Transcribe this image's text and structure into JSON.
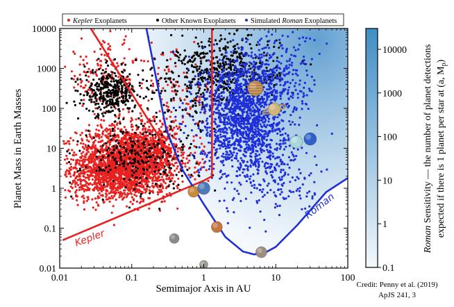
{
  "chart_data": {
    "type": "scatter",
    "xlabel": "Semimajor Axis in AU",
    "ylabel": "Planet Mass in Earth Masses",
    "xscale": "log",
    "yscale": "log",
    "xlim": [
      0.01,
      100
    ],
    "ylim": [
      0.01,
      10000
    ],
    "x_ticks": [
      {
        "value": 0.01,
        "label": "0.01"
      },
      {
        "value": 0.1,
        "label": "0.1"
      },
      {
        "value": 1,
        "label": "1"
      },
      {
        "value": 10,
        "label": "10"
      },
      {
        "value": 100,
        "label": "100"
      }
    ],
    "y_ticks": [
      {
        "value": 0.01,
        "label": "0.01"
      },
      {
        "value": 0.1,
        "label": "0.1"
      },
      {
        "value": 1,
        "label": "1"
      },
      {
        "value": 10,
        "label": "10"
      },
      {
        "value": 100,
        "label": "100"
      },
      {
        "value": 1000,
        "label": "1000"
      },
      {
        "value": 10000,
        "label": "10000"
      }
    ],
    "legend": {
      "placement": "top",
      "entries": [
        {
          "pre": "",
          "italic": "Kepler",
          "post": " Exoplanets",
          "color": "#e8201e"
        },
        {
          "pre": "Other Known Exoplanets",
          "italic": "",
          "post": "",
          "color": "#000000"
        },
        {
          "pre": "Simulated ",
          "italic": "Roman",
          "post": " Exoplanets",
          "color": "#1f2fd8"
        }
      ]
    },
    "series": [
      {
        "key": "kepler",
        "color": "#e8201e",
        "clusters": [
          {
            "x": 0.085,
            "y": 5,
            "sx": 0.34,
            "sy": 0.42,
            "n": 1800
          },
          {
            "x": 0.05,
            "y": 1.8,
            "sx": 0.3,
            "sy": 0.3,
            "n": 500
          },
          {
            "x": 0.2,
            "y": 6,
            "sx": 0.3,
            "sy": 0.45,
            "n": 400
          },
          {
            "x": 0.045,
            "y": 600,
            "sx": 0.3,
            "sy": 0.45,
            "n": 180
          },
          {
            "x": 0.45,
            "y": 200,
            "sx": 0.3,
            "sy": 0.55,
            "n": 90
          }
        ],
        "region": {
          "xmin": 0.011,
          "xmax": 1.4,
          "ymin": 0.09,
          "ymax": 9000
        }
      },
      {
        "key": "other",
        "color": "#000000",
        "clusters": [
          {
            "x": 0.05,
            "y": 250,
            "sx": 0.18,
            "sy": 0.28,
            "n": 350
          },
          {
            "x": 0.13,
            "y": 6,
            "sx": 0.4,
            "sy": 0.4,
            "n": 260
          },
          {
            "x": 2.2,
            "y": 900,
            "sx": 0.35,
            "sy": 0.42,
            "n": 420
          },
          {
            "x": 0.6,
            "y": 300,
            "sx": 0.4,
            "sy": 0.5,
            "n": 160
          }
        ],
        "region": {
          "xmin": 0.011,
          "xmax": 60,
          "ymin": 0.1,
          "ymax": 9800
        }
      },
      {
        "key": "roman",
        "color": "#1f2fd8",
        "clusters": [
          {
            "x": 3.5,
            "y": 60,
            "sx": 0.3,
            "sy": 0.75,
            "n": 1500
          },
          {
            "x": 9,
            "y": 500,
            "sx": 0.32,
            "sy": 0.6,
            "n": 300
          },
          {
            "x": 12,
            "y": 2,
            "sx": 0.3,
            "sy": 0.5,
            "n": 150
          }
        ],
        "region": {
          "xmin": 0.3,
          "xmax": 95,
          "ymin": 0.03,
          "ymax": 9800
        }
      }
    ],
    "kepler_boundary": [
      [
        0.011,
        0.05
      ],
      [
        1.0,
        1.55
      ],
      [
        1.3,
        2.0
      ],
      [
        1.3,
        10000
      ]
    ],
    "kepler_boundary_upper": [
      [
        0.027,
        10000
      ],
      [
        0.3,
        10
      ]
    ],
    "kepler_label": {
      "text": "Kepler",
      "x": 0.017,
      "y": 0.035
    },
    "roman_boundary": [
      [
        0.16,
        10000
      ],
      [
        0.3,
        30
      ],
      [
        0.5,
        3
      ],
      [
        1,
        0.4
      ],
      [
        2,
        0.06
      ],
      [
        3.5,
        0.026
      ],
      [
        5,
        0.022
      ],
      [
        7,
        0.024
      ],
      [
        10,
        0.034
      ],
      [
        20,
        0.12
      ],
      [
        50,
        0.8
      ],
      [
        100,
        1.8
      ]
    ],
    "roman_label": {
      "text": "Roman",
      "x": 28,
      "y": 0.17
    },
    "solar_system": [
      {
        "name": "Mercury",
        "x": 0.39,
        "y": 0.055,
        "r": 7,
        "color": "#8a8a8a"
      },
      {
        "name": "Venus",
        "x": 0.72,
        "y": 0.82,
        "r": 8,
        "color": "#c98a3c"
      },
      {
        "name": "Earth",
        "x": 1.0,
        "y": 1.0,
        "r": 9,
        "color": "#4f79b8"
      },
      {
        "name": "Mars",
        "x": 1.52,
        "y": 0.107,
        "r": 8,
        "color": "#c4763f"
      },
      {
        "name": "Jupiter",
        "x": 5.2,
        "y": 318,
        "r": 11,
        "color": "#c9995e"
      },
      {
        "name": "Saturn",
        "x": 9.5,
        "y": 95,
        "r": 9,
        "color": "#d1b47a"
      },
      {
        "name": "Uranus",
        "x": 19.2,
        "y": 14.5,
        "r": 9,
        "color": "#a8d8d8"
      },
      {
        "name": "Neptune",
        "x": 30.1,
        "y": 17.1,
        "r": 9,
        "color": "#2f5fc8"
      },
      {
        "name": "Moon",
        "x": 1.0,
        "y": 0.0123,
        "r": 6,
        "color": "#a09a94"
      },
      {
        "name": "Dwarf",
        "x": 6.3,
        "y": 0.025,
        "r": 8,
        "color": "#9e8f80"
      }
    ],
    "colorbar": {
      "label_line1_italic": "Roman",
      "label_line1_rest": " Sensitivity — the number of planet detections",
      "label_line2": "expected if there is 1 planet per star at (a, M",
      "label_line2_sub": "p",
      "label_line2_end": ")",
      "min": 0.1,
      "max": 30000,
      "low_color": "#f4f8fc",
      "high_color": "#3f8ec4",
      "ticks": [
        {
          "value": 10000,
          "label": "10000"
        },
        {
          "value": 1000,
          "label": "1000"
        },
        {
          "value": 100,
          "label": "100"
        },
        {
          "value": 10,
          "label": "10"
        },
        {
          "value": 1,
          "label": "1"
        },
        {
          "value": 0.1,
          "label": "0.1"
        }
      ]
    }
  },
  "credit": {
    "line1": "Credit: Penny et al. (2019)",
    "line2": "ApJS 241, 3"
  }
}
